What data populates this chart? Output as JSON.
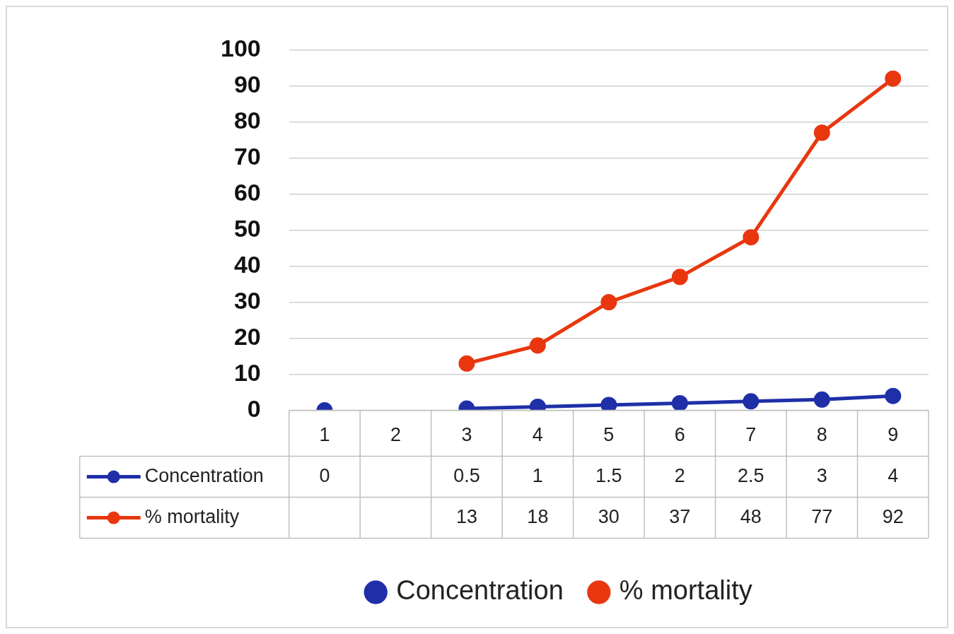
{
  "chart_data": {
    "type": "line",
    "categories": [
      "1",
      "2",
      "3",
      "4",
      "5",
      "6",
      "7",
      "8",
      "9"
    ],
    "series": [
      {
        "name": "Concentration",
        "color": "#1f2fa8",
        "values": [
          0,
          null,
          0.5,
          1,
          1.5,
          2,
          2.5,
          3,
          4
        ]
      },
      {
        "name": "% mortality",
        "color": "#e8370f",
        "values": [
          null,
          null,
          13,
          18,
          30,
          37,
          48,
          77,
          92
        ]
      }
    ],
    "ylim": [
      0,
      100
    ],
    "yticks": [
      0,
      10,
      20,
      30,
      40,
      50,
      60,
      70,
      80,
      90,
      100
    ],
    "grid": "y",
    "legend": "bottom",
    "marker": "circle",
    "line_style": "solid",
    "data_labels": true
  }
}
